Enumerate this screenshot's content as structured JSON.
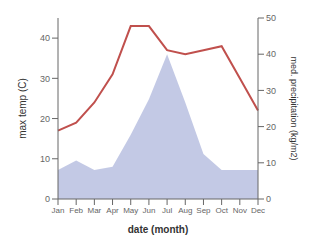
{
  "chart_data": {
    "type": "line",
    "xlabel": "date (month)",
    "ylabel": "max temp (C)",
    "y2label": "med. precipitation (kg/m2)",
    "categories": [
      "Jan",
      "Feb",
      "Mar",
      "Apr",
      "May",
      "Jun",
      "Jul",
      "Aug",
      "Sep",
      "Oct",
      "Nov",
      "Dec"
    ],
    "series": [
      {
        "type": "area",
        "color": "#b8c0e0",
        "values": [
          7.2,
          9.6,
          7.2,
          8,
          16,
          24.8,
          36,
          24,
          11.2,
          7.2,
          7.2,
          7.2
        ]
      },
      {
        "type": "line",
        "color": "#c0504d",
        "values": [
          17,
          19,
          24,
          31,
          43,
          43,
          37,
          36,
          37,
          38,
          30,
          22
        ]
      }
    ],
    "ylim": [
      0,
      45
    ],
    "yticks": [
      0,
      10,
      20,
      30,
      40
    ],
    "y2lim": [
      0,
      50
    ],
    "y2ticks": [
      0,
      10,
      20,
      30,
      40,
      50
    ],
    "grid": false
  }
}
